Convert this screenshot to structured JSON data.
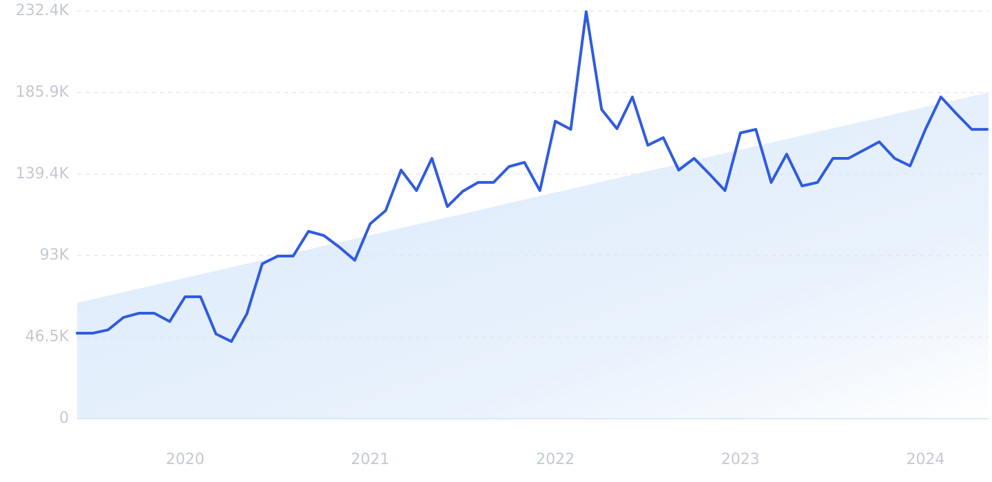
{
  "chart_data": {
    "type": "line",
    "categories": [
      null,
      null,
      null,
      null,
      null,
      null,
      null,
      "2020",
      null,
      null,
      null,
      null,
      null,
      null,
      null,
      null,
      null,
      null,
      null,
      "2021",
      null,
      null,
      null,
      null,
      null,
      null,
      null,
      null,
      null,
      null,
      null,
      "2022",
      null,
      null,
      null,
      null,
      null,
      null,
      null,
      null,
      null,
      null,
      null,
      "2023",
      null,
      null,
      null,
      null,
      null,
      null,
      null,
      null,
      null,
      null,
      null,
      "2024",
      null,
      null,
      null,
      null
    ],
    "series": [
      {
        "color": "#2f5be0",
        "values": [
          48700,
          48700,
          50600,
          57700,
          60100,
          60100,
          55400,
          69500,
          69500,
          48300,
          44000,
          59700,
          88300,
          92700,
          92700,
          106800,
          104400,
          97800,
          90300,
          111100,
          118600,
          141700,
          130000,
          148400,
          120900,
          129600,
          134700,
          134700,
          143700,
          146100,
          130000,
          169600,
          164900,
          232000,
          176300,
          165300,
          183400,
          155900,
          160200,
          141700,
          148400,
          139400,
          130000,
          162900,
          164900,
          134700,
          150800,
          132700,
          134700,
          148400,
          148400,
          153100,
          157800,
          148400,
          144100,
          164900,
          183400,
          173900,
          164900,
          164900
        ]
      }
    ],
    "trend": [
      66000,
      186000
    ],
    "trend_color": "#dbe9fb",
    "ylim": [
      0,
      232400
    ],
    "yticks": [
      0,
      {
        "value": 46500,
        "label": "46.5K"
      },
      {
        "value": 93000,
        "label": "93K"
      },
      {
        "value": 139400,
        "label": "139.4K"
      },
      {
        "value": 185900,
        "label": "185.9K"
      },
      {
        "value": 232400,
        "label": "232.4K"
      }
    ],
    "grid": true
  }
}
